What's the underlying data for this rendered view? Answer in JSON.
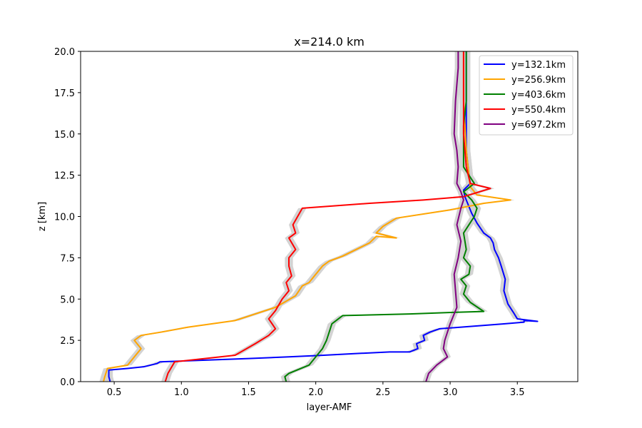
{
  "chart_data": {
    "type": "line",
    "title": "x=214.0 km",
    "xlabel": "layer-AMF",
    "ylabel": "z [km]",
    "xlim": [
      0.25,
      3.95
    ],
    "ylim": [
      0,
      20
    ],
    "xticks": [
      0.5,
      1.0,
      1.5,
      2.0,
      2.5,
      3.0,
      3.5
    ],
    "xtick_labels": [
      "0.5",
      "1.0",
      "1.5",
      "2.0",
      "2.5",
      "3.0",
      "3.5"
    ],
    "yticks": [
      0,
      2.5,
      5,
      7.5,
      10,
      12.5,
      15,
      17.5,
      20
    ],
    "ytick_labels": [
      "0.0",
      "2.5",
      "5.0",
      "7.5",
      "10.0",
      "12.5",
      "15.0",
      "17.5",
      "20.0"
    ],
    "grid": false,
    "legend_position": "top-right",
    "uncertainty_band": {
      "color": "#d3d3d3"
    },
    "series": [
      {
        "name": "y=132.1km",
        "color": "#0000ff",
        "x": [
          0.47,
          0.46,
          0.46,
          0.6,
          0.72,
          0.82,
          0.84,
          1.5,
          1.8,
          2.06,
          2.3,
          2.55,
          2.7,
          2.76,
          2.75,
          2.81,
          2.8,
          2.85,
          2.92,
          3.4,
          3.55,
          3.55,
          3.65,
          3.5,
          3.47,
          3.43,
          3.4,
          3.41,
          3.38,
          3.36,
          3.33,
          3.32,
          3.3,
          3.25,
          3.2,
          3.16,
          3.13,
          3.11,
          3.1,
          3.15,
          3.14,
          3.12,
          3.12,
          3.12
        ],
        "y": [
          0,
          0.3,
          0.7,
          0.8,
          0.9,
          1.1,
          1.2,
          1.4,
          1.5,
          1.6,
          1.7,
          1.8,
          1.8,
          2.0,
          2.3,
          2.5,
          2.8,
          3.0,
          3.2,
          3.5,
          3.6,
          3.7,
          3.65,
          3.8,
          4.2,
          4.7,
          5.5,
          6.2,
          7.0,
          7.5,
          8.0,
          8.4,
          8.7,
          9.0,
          9.6,
          10.2,
          10.8,
          11.2,
          11.6,
          12.0,
          12.5,
          14.0,
          17.0,
          20.0
        ],
        "band": 0.03
      },
      {
        "name": "y=256.9km",
        "color": "#ffa500",
        "x": [
          0.42,
          0.43,
          0.45,
          0.6,
          0.65,
          0.7,
          0.65,
          0.7,
          0.85,
          1.05,
          1.4,
          1.7,
          1.85,
          1.9,
          1.95,
          2.0,
          2.05,
          2.1,
          2.2,
          2.3,
          2.4,
          2.45,
          2.6,
          2.45,
          2.5,
          2.6,
          3.0,
          3.25,
          3.45,
          3.2,
          3.15,
          3.14,
          3.12,
          3.1,
          3.1
        ],
        "y": [
          0,
          0.3,
          0.8,
          1.0,
          1.5,
          2.0,
          2.5,
          2.8,
          3.0,
          3.3,
          3.7,
          4.5,
          5.2,
          5.8,
          6.0,
          6.5,
          7.0,
          7.3,
          7.6,
          8.0,
          8.4,
          8.8,
          8.7,
          9.0,
          9.4,
          9.9,
          10.4,
          10.8,
          11.0,
          11.3,
          11.8,
          12.5,
          14.0,
          17.0,
          20.0
        ],
        "band": 0.03
      },
      {
        "name": "y=403.6km",
        "color": "#008000",
        "x": [
          1.78,
          1.77,
          1.8,
          1.95,
          2.0,
          2.05,
          2.08,
          2.1,
          2.12,
          2.2,
          2.7,
          3.05,
          3.25,
          3.15,
          3.1,
          3.12,
          3.08,
          3.14,
          3.15,
          3.1,
          3.12,
          3.1,
          3.14,
          3.18,
          3.2,
          3.16,
          3.1,
          3.18,
          3.1,
          3.1,
          3.12,
          3.12
        ],
        "y": [
          0,
          0.3,
          0.5,
          1.0,
          1.5,
          2.0,
          2.5,
          3.0,
          3.5,
          4.0,
          4.1,
          4.2,
          4.25,
          4.8,
          5.3,
          5.8,
          6.2,
          6.5,
          7.0,
          7.5,
          8.0,
          9.0,
          9.5,
          10.0,
          10.5,
          11.0,
          11.5,
          12.0,
          13.0,
          15.5,
          17.0,
          20.0
        ],
        "band": 0.03
      },
      {
        "name": "y=550.4km",
        "color": "#ff0000",
        "x": [
          0.88,
          0.9,
          0.95,
          1.4,
          1.55,
          1.65,
          1.7,
          1.65,
          1.7,
          1.75,
          1.8,
          1.78,
          1.82,
          1.8,
          1.8,
          1.85,
          1.8,
          1.85,
          1.83,
          1.9,
          2.4,
          2.8,
          3.1,
          3.3,
          3.15,
          3.12,
          3.1,
          3.1
        ],
        "y": [
          0,
          0.5,
          1.2,
          1.6,
          2.3,
          2.8,
          3.2,
          3.8,
          4.3,
          5.0,
          5.5,
          6.0,
          6.4,
          7.0,
          7.5,
          8.0,
          8.7,
          9.0,
          9.5,
          10.5,
          10.8,
          11.0,
          11.2,
          11.7,
          12.0,
          13.0,
          15.0,
          20.0
        ],
        "band": 0.03
      },
      {
        "name": "y=697.2km",
        "color": "#800080",
        "x": [
          2.82,
          2.84,
          2.9,
          2.98,
          2.95,
          2.96,
          3.0,
          3.05,
          3.04,
          3.03,
          3.06,
          3.08,
          3.05,
          3.08,
          3.1,
          3.08,
          3.05,
          3.06,
          3.05,
          3.03,
          3.04,
          3.06,
          3.06
        ],
        "y": [
          0,
          0.5,
          1.0,
          1.5,
          2.0,
          2.5,
          3.5,
          4.5,
          5.5,
          6.5,
          7.5,
          8.5,
          9.5,
          10.5,
          11.0,
          11.5,
          12.0,
          13.0,
          14.0,
          15.0,
          17.0,
          19.0,
          20.0
        ],
        "band": 0.025
      }
    ]
  }
}
